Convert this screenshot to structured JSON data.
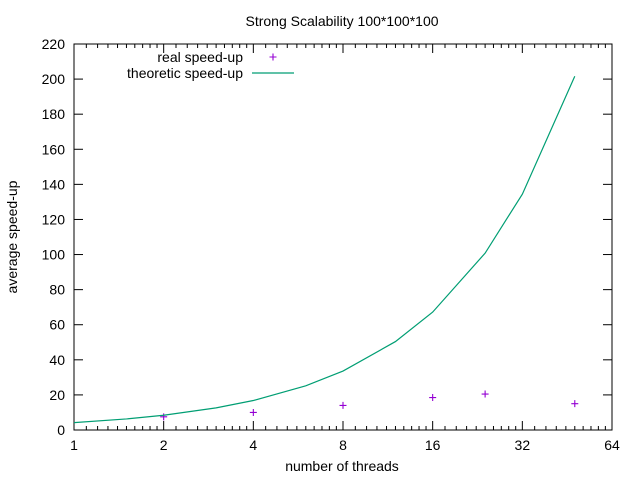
{
  "chart_data": {
    "type": "scatter",
    "title": "Strong Scalability 100*100*100",
    "xlabel": "number of threads",
    "ylabel": "average speed-up",
    "x_scale": "log2",
    "xlim": [
      1,
      64
    ],
    "ylim": [
      0,
      220
    ],
    "x_ticks": [
      1,
      2,
      4,
      8,
      16,
      32,
      64
    ],
    "x_tick_labels": [
      "1",
      "2",
      "4",
      "8",
      "16",
      "32",
      "64"
    ],
    "y_ticks": [
      0,
      20,
      40,
      60,
      80,
      100,
      120,
      140,
      160,
      180,
      200,
      220
    ],
    "y_tick_labels": [
      "0",
      "20",
      "40",
      "60",
      "80",
      "100",
      "120",
      "140",
      "160",
      "180",
      "200",
      "220"
    ],
    "grid": false,
    "legend_position": "top-left",
    "series": [
      {
        "name": "real speed-up",
        "type": "scatter",
        "marker": "+",
        "color": "#9400d3",
        "points": [
          {
            "x": 2,
            "y": 7.5
          },
          {
            "x": 4,
            "y": 10
          },
          {
            "x": 8,
            "y": 14
          },
          {
            "x": 16,
            "y": 18.5
          },
          {
            "x": 24,
            "y": 20.5
          },
          {
            "x": 48,
            "y": 15
          }
        ]
      },
      {
        "name": "theoretic speed-up",
        "type": "line",
        "color": "#009e73",
        "points": [
          {
            "x": 1,
            "y": 4.2
          },
          {
            "x": 1.5,
            "y": 6.3
          },
          {
            "x": 2,
            "y": 8.4
          },
          {
            "x": 3,
            "y": 12.6
          },
          {
            "x": 4,
            "y": 16.8
          },
          {
            "x": 6,
            "y": 25.2
          },
          {
            "x": 8,
            "y": 33.6
          },
          {
            "x": 12,
            "y": 50.4
          },
          {
            "x": 16,
            "y": 67.2
          },
          {
            "x": 24,
            "y": 100.8
          },
          {
            "x": 32,
            "y": 134.4
          },
          {
            "x": 48,
            "y": 201.6
          }
        ]
      }
    ]
  }
}
